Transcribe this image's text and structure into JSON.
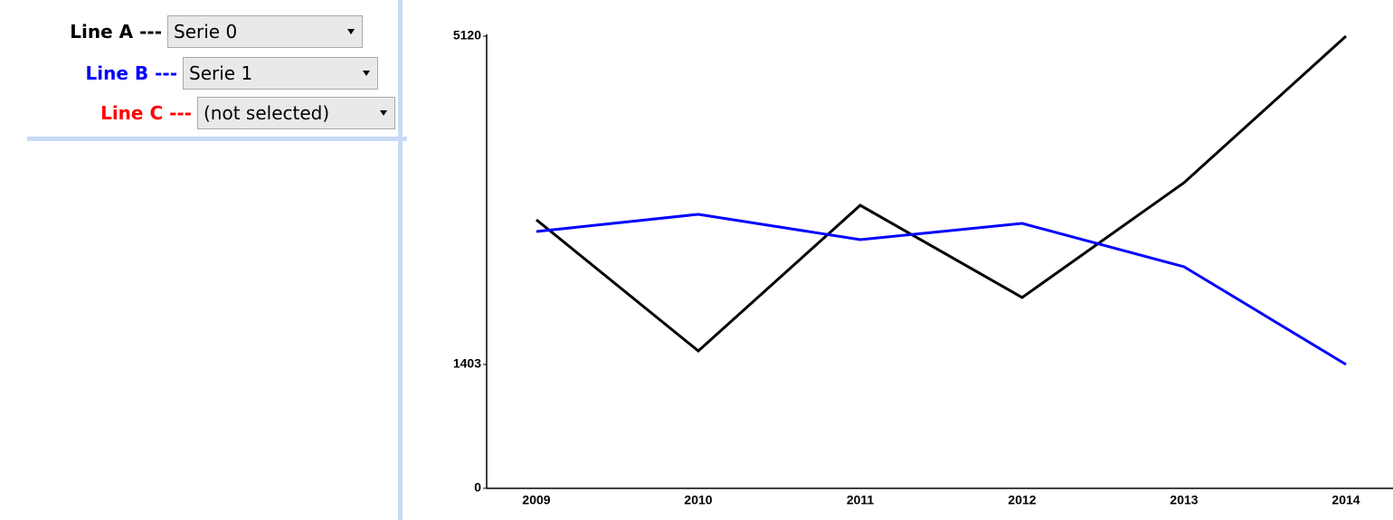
{
  "controls": [
    {
      "label": "Line A ---",
      "color": "#000000",
      "selected": "Serie 0"
    },
    {
      "label": "Line B ---",
      "color": "#0000ff",
      "selected": "Serie 1"
    },
    {
      "label": "Line C ---",
      "color": "#ff0000",
      "selected": "(not selected)"
    }
  ],
  "chart_data": {
    "type": "line",
    "categories": [
      "2009",
      "2010",
      "2011",
      "2012",
      "2013",
      "2014"
    ],
    "series": [
      {
        "color": "#000000",
        "values": [
          3041,
          1556,
          3205,
          2161,
          3461,
          5120
        ]
      },
      {
        "color": "#0000ff",
        "values": [
          2908,
          3103,
          2816,
          3000,
          2509,
          1403
        ]
      }
    ],
    "ylim": [
      0,
      5120
    ],
    "yticks": [
      0,
      1403,
      5120
    ]
  }
}
